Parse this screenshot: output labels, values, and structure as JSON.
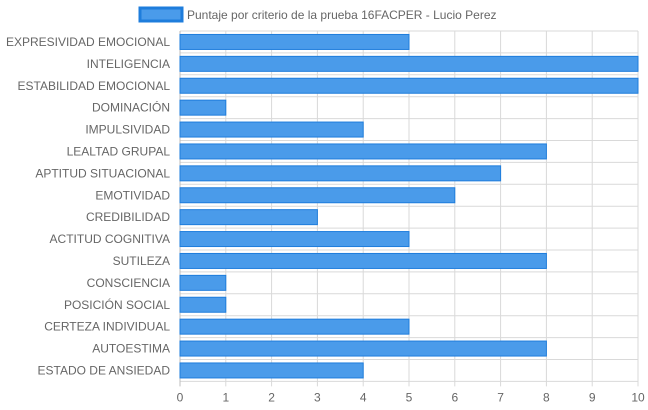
{
  "chart_data": {
    "type": "bar",
    "orientation": "horizontal",
    "legend": {
      "position": "top",
      "label": "Puntaje por criterio de la prueba 16FACPER - Lucio Perez"
    },
    "categories": [
      "EXPRESIVIDAD EMOCIONAL",
      "INTELIGENCIA",
      "ESTABILIDAD EMOCIONAL",
      "DOMINACIÓN",
      "IMPULSIVIDAD",
      "LEALTAD GRUPAL",
      "APTITUD SITUACIONAL",
      "EMOTIVIDAD",
      "CREDIBILIDAD",
      "ACTITUD COGNITIVA",
      "SUTILEZA",
      "CONSCIENCIA",
      "POSICIÓN SOCIAL",
      "CERTEZA INDIVIDUAL",
      "AUTOESTIMA",
      "ESTADO DE ANSIEDAD"
    ],
    "series": [
      {
        "name": "Puntaje por criterio de la prueba 16FACPER - Lucio Perez",
        "values": [
          5,
          10,
          10,
          1,
          4,
          8,
          7,
          6,
          3,
          5,
          8,
          1,
          1,
          5,
          8,
          4
        ],
        "color": "#4a9bea",
        "border_color": "#1e7ddc"
      }
    ],
    "xlim": [
      0,
      10
    ],
    "x_ticks": [
      "0",
      "1",
      "2",
      "3",
      "4",
      "5",
      "6",
      "7",
      "8",
      "9",
      "10"
    ],
    "grid": true
  }
}
